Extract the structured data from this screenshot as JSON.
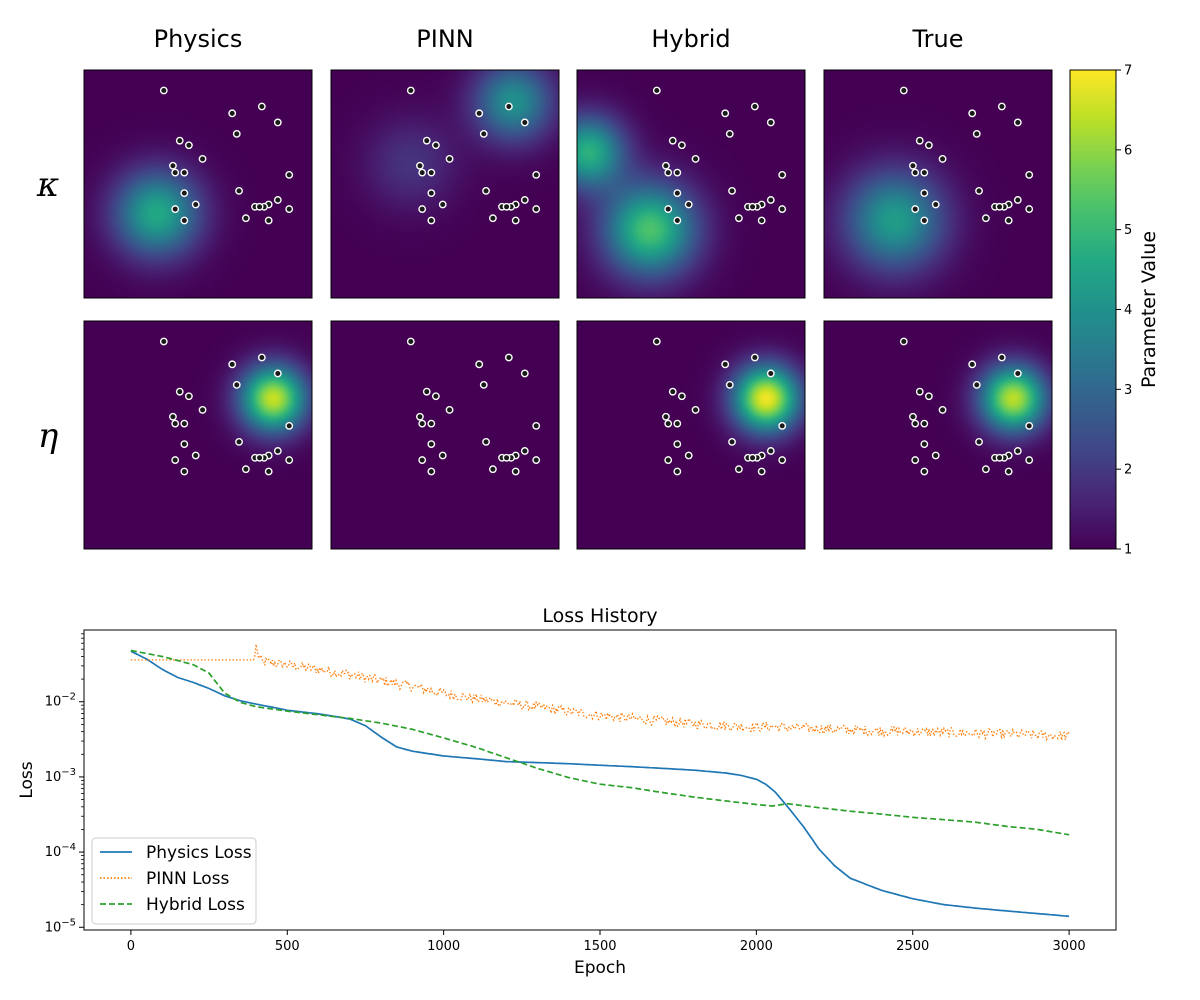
{
  "chart_data": [
    {
      "type": "heatmap",
      "columns": [
        "Physics",
        "PINN",
        "Hybrid",
        "True"
      ],
      "rows": [
        "κ",
        "η"
      ],
      "colormap": "viridis",
      "colorbar": {
        "label": "Parameter Value",
        "range": [
          1,
          7
        ],
        "ticks": [
          "1",
          "2",
          "3",
          "4",
          "5",
          "6",
          "7"
        ]
      },
      "sensor_points": [
        [
          0.35,
          0.91
        ],
        [
          0.65,
          0.81
        ],
        [
          0.78,
          0.84
        ],
        [
          0.85,
          0.77
        ],
        [
          0.67,
          0.72
        ],
        [
          0.42,
          0.69
        ],
        [
          0.46,
          0.67
        ],
        [
          0.52,
          0.61
        ],
        [
          0.39,
          0.58
        ],
        [
          0.4,
          0.55
        ],
        [
          0.44,
          0.55
        ],
        [
          0.9,
          0.54
        ],
        [
          0.44,
          0.46
        ],
        [
          0.68,
          0.47
        ],
        [
          0.49,
          0.41
        ],
        [
          0.85,
          0.43
        ],
        [
          0.81,
          0.41
        ],
        [
          0.79,
          0.4
        ],
        [
          0.75,
          0.4
        ],
        [
          0.77,
          0.4
        ],
        [
          0.4,
          0.39
        ],
        [
          0.9,
          0.39
        ],
        [
          0.71,
          0.35
        ],
        [
          0.44,
          0.34
        ],
        [
          0.81,
          0.34
        ]
      ],
      "fields": [
        {
          "row": "κ",
          "column": "Physics",
          "blobs": [
            {
              "cx": 0.32,
              "cy": 0.37,
              "sigma": 0.13,
              "amp": 3.6
            }
          ]
        },
        {
          "row": "κ",
          "column": "PINN",
          "blobs": [
            {
              "cx": 0.35,
              "cy": 0.59,
              "sigma": 0.14,
              "amp": 0.9
            },
            {
              "cx": 0.8,
              "cy": 0.86,
              "sigma": 0.12,
              "amp": 3.0
            }
          ]
        },
        {
          "row": "κ",
          "column": "Hybrid",
          "blobs": [
            {
              "cx": 0.32,
              "cy": 0.3,
              "sigma": 0.14,
              "amp": 4.3
            },
            {
              "cx": 0.05,
              "cy": 0.64,
              "sigma": 0.11,
              "amp": 3.8
            }
          ]
        },
        {
          "row": "κ",
          "column": "True",
          "blobs": [
            {
              "cx": 0.31,
              "cy": 0.34,
              "sigma": 0.15,
              "amp": 3.3
            }
          ]
        },
        {
          "row": "η",
          "column": "Physics",
          "blobs": [
            {
              "cx": 0.83,
              "cy": 0.66,
              "sigma": 0.1,
              "amp": 5.5
            }
          ]
        },
        {
          "row": "η",
          "column": "PINN",
          "blobs": []
        },
        {
          "row": "η",
          "column": "Hybrid",
          "blobs": [
            {
              "cx": 0.83,
              "cy": 0.66,
              "sigma": 0.1,
              "amp": 5.9
            }
          ]
        },
        {
          "row": "η",
          "column": "True",
          "blobs": [
            {
              "cx": 0.83,
              "cy": 0.66,
              "sigma": 0.1,
              "amp": 5.4
            }
          ]
        }
      ]
    },
    {
      "type": "line",
      "title": "Loss History",
      "xlabel": "Epoch",
      "ylabel": "Loss",
      "xlim": [
        -150,
        3150
      ],
      "ylim": [
        9.2e-06,
        0.09
      ],
      "yscale": "log",
      "xticks": [
        0,
        500,
        1000,
        1500,
        2000,
        2500,
        3000
      ],
      "yticks": [
        {
          "value": 1e-05,
          "mantissa": "10",
          "exp": "−5"
        },
        {
          "value": 0.0001,
          "mantissa": "10",
          "exp": "−4"
        },
        {
          "value": 0.001,
          "mantissa": "10",
          "exp": "−3"
        },
        {
          "value": 0.01,
          "mantissa": "10",
          "exp": "−2"
        }
      ],
      "legend_position": "lower-left",
      "series": [
        {
          "name": "Physics Loss",
          "color": "#1f77b4",
          "style": "solid",
          "x": [
            0,
            50,
            100,
            150,
            200,
            250,
            300,
            350,
            400,
            450,
            500,
            600,
            700,
            750,
            800,
            850,
            900,
            1000,
            1100,
            1200,
            1300,
            1400,
            1500,
            1600,
            1700,
            1800,
            1900,
            1950,
            2000,
            2030,
            2060,
            2100,
            2150,
            2200,
            2250,
            2300,
            2400,
            2500,
            2600,
            2700,
            2800,
            2900,
            3000
          ],
          "y": [
            0.047,
            0.037,
            0.027,
            0.021,
            0.018,
            0.015,
            0.012,
            0.0103,
            0.0093,
            0.0085,
            0.0077,
            0.0069,
            0.0059,
            0.0048,
            0.0034,
            0.0025,
            0.0022,
            0.0019,
            0.00175,
            0.0016,
            0.00155,
            0.0015,
            0.00143,
            0.00137,
            0.0013,
            0.00123,
            0.00113,
            0.00105,
            0.00093,
            0.0008,
            0.00063,
            0.0004,
            0.00022,
            0.00011,
            6.6e-05,
            4.5e-05,
            3.1e-05,
            2.4e-05,
            2e-05,
            1.8e-05,
            1.65e-05,
            1.52e-05,
            1.4e-05
          ]
        },
        {
          "name": "PINN Loss",
          "color": "#ff7f0e",
          "style": "dotted",
          "x": [
            0,
            100,
            200,
            300,
            380,
            395,
            400,
            405,
            420,
            500,
            600,
            700,
            800,
            900,
            1000,
            1100,
            1200,
            1300,
            1400,
            1500,
            1600,
            1700,
            1800,
            1900,
            2000,
            2050,
            2100,
            2200,
            2300,
            2400,
            2500,
            2600,
            2700,
            2800,
            2900,
            3000
          ],
          "y": [
            0.036,
            0.036,
            0.036,
            0.036,
            0.036,
            0.036,
            0.058,
            0.042,
            0.034,
            0.031,
            0.027,
            0.023,
            0.019,
            0.016,
            0.013,
            0.011,
            0.0097,
            0.0085,
            0.0074,
            0.0066,
            0.006,
            0.0055,
            0.0051,
            0.0048,
            0.0046,
            0.0047,
            0.0045,
            0.0044,
            0.0042,
            0.0041,
            0.004,
            0.0039,
            0.0038,
            0.0037,
            0.0036,
            0.0035
          ],
          "noisy": true
        },
        {
          "name": "Hybrid Loss",
          "color": "#2ca02c",
          "style": "dashed",
          "x": [
            0,
            100,
            200,
            250,
            300,
            350,
            400,
            500,
            600,
            700,
            800,
            900,
            1000,
            1100,
            1200,
            1300,
            1400,
            1500,
            1600,
            1700,
            1800,
            1900,
            2000,
            2050,
            2100,
            2200,
            2300,
            2400,
            2500,
            2600,
            2700,
            2800,
            2900,
            3000
          ],
          "y": [
            0.048,
            0.04,
            0.031,
            0.024,
            0.013,
            0.0098,
            0.0086,
            0.0075,
            0.0067,
            0.006,
            0.0052,
            0.0043,
            0.0033,
            0.0025,
            0.0018,
            0.0013,
            0.00098,
            0.0008,
            0.00072,
            0.00062,
            0.00054,
            0.00048,
            0.00043,
            0.00041,
            0.00044,
            0.00039,
            0.00035,
            0.00032,
            0.00029,
            0.00027,
            0.00025,
            0.00022,
            0.0002,
            0.00017
          ]
        }
      ]
    }
  ]
}
